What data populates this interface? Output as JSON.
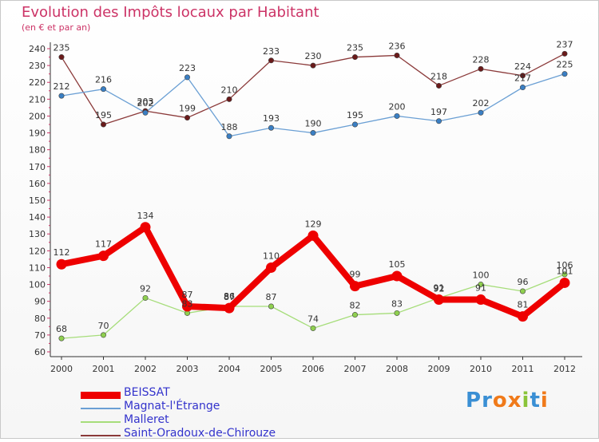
{
  "chart_data": {
    "type": "line",
    "title": "Evolution des Impôts locaux par Habitant",
    "subtitle": "(en € et par an)",
    "xlabel": "",
    "ylabel": "",
    "ylim": [
      60,
      240
    ],
    "yticks": [
      60,
      70,
      80,
      90,
      100,
      110,
      120,
      130,
      140,
      150,
      160,
      170,
      180,
      190,
      200,
      210,
      220,
      230,
      240
    ],
    "categories": [
      "2000",
      "2001",
      "2002",
      "2003",
      "2004",
      "2005",
      "2006",
      "2007",
      "2008",
      "2009",
      "2010",
      "2011",
      "2012"
    ],
    "series": [
      {
        "name": "Saint-Oradoux-de-Chirouze",
        "color": "#8b3a3a",
        "marker": "#6a1a1a",
        "values": [
          235,
          195,
          203,
          199,
          210,
          233,
          230,
          235,
          236,
          218,
          228,
          224,
          237
        ]
      },
      {
        "name": "Magnat-l'Étrange",
        "color": "#6a9fd4",
        "marker": "#3a7fc4",
        "values": [
          212,
          216,
          202,
          223,
          188,
          193,
          190,
          195,
          200,
          197,
          202,
          217,
          225
        ]
      },
      {
        "name": "Malleret",
        "color": "#a6dd7a",
        "marker": "#8fd04f",
        "values": [
          68,
          70,
          92,
          83,
          87,
          87,
          74,
          82,
          83,
          92,
          100,
          96,
          106
        ]
      },
      {
        "name": "BEISSAT",
        "color": "#ee0000",
        "marker": "#ee0000",
        "values": [
          112,
          117,
          134,
          87,
          86,
          110,
          129,
          99,
          105,
          91,
          91,
          81,
          101
        ]
      }
    ],
    "legend_order": [
      "BEISSAT",
      "Magnat-l'Étrange",
      "Malleret",
      "Saint-Oradoux-de-Chirouze"
    ],
    "grid": false,
    "legend": "bottom-left"
  },
  "logo": {
    "text": "Proxiti",
    "letters": [
      "P",
      "r",
      "o",
      "x",
      "i",
      "t",
      "i"
    ],
    "colors": [
      "#3a8fd4",
      "#3a8fd4",
      "#f07a1a",
      "#f07a1a",
      "#8ac43a",
      "#3a8fd4",
      "#f07a1a"
    ]
  }
}
